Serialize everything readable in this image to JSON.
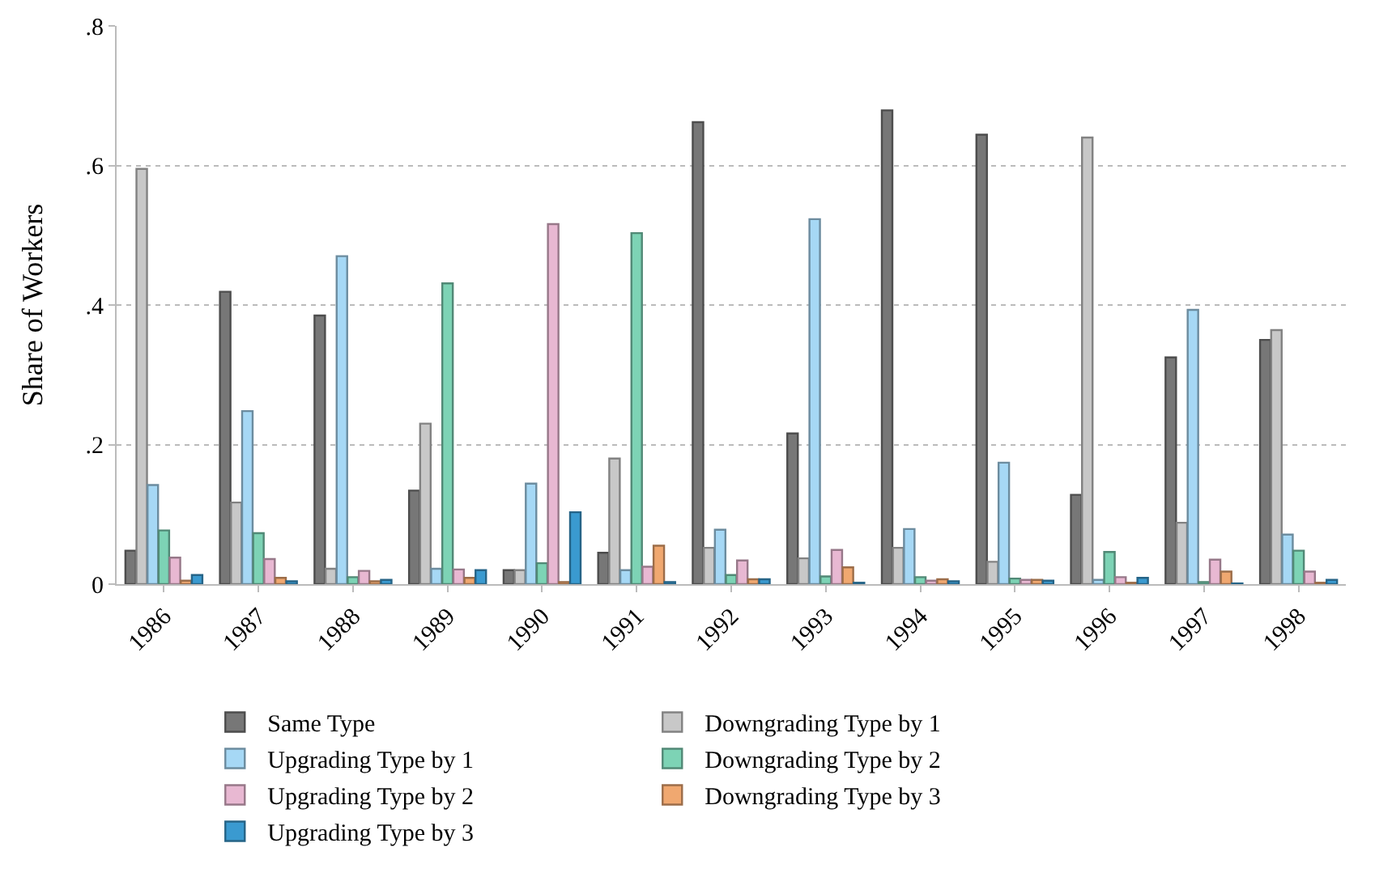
{
  "chart_data": {
    "type": "bar",
    "ylabel": "Share of Workers",
    "categories": [
      "1986",
      "1987",
      "1988",
      "1989",
      "1990",
      "1991",
      "1992",
      "1993",
      "1994",
      "1995",
      "1996",
      "1997",
      "1998"
    ],
    "series": [
      {
        "name": "Same Type",
        "color": "#777777",
        "values": [
          0.048,
          0.419,
          0.385,
          0.134,
          0.02,
          0.045,
          0.662,
          0.216,
          0.679,
          0.644,
          0.128,
          0.325,
          0.35
        ]
      },
      {
        "name": "Downgrading Type by 1",
        "color": "#c8c8c8",
        "values": [
          0.595,
          0.117,
          0.022,
          0.23,
          0.02,
          0.18,
          0.052,
          0.037,
          0.052,
          0.032,
          0.64,
          0.088,
          0.364
        ]
      },
      {
        "name": "Upgrading Type by 1",
        "color": "#a6d8f5",
        "values": [
          0.142,
          0.248,
          0.47,
          0.022,
          0.144,
          0.02,
          0.078,
          0.523,
          0.079,
          0.174,
          0.006,
          0.393,
          0.071
        ]
      },
      {
        "name": "Downgrading Type by 2",
        "color": "#7dd3b5",
        "values": [
          0.077,
          0.073,
          0.01,
          0.431,
          0.03,
          0.503,
          0.013,
          0.011,
          0.01,
          0.008,
          0.046,
          0.003,
          0.048
        ]
      },
      {
        "name": "Upgrading Type by 2",
        "color": "#e8b8d2",
        "values": [
          0.038,
          0.036,
          0.019,
          0.021,
          0.516,
          0.025,
          0.034,
          0.049,
          0.005,
          0.006,
          0.01,
          0.035,
          0.018
        ]
      },
      {
        "name": "Downgrading Type by 3",
        "color": "#f0a870",
        "values": [
          0.005,
          0.009,
          0.004,
          0.009,
          0.003,
          0.055,
          0.007,
          0.024,
          0.007,
          0.006,
          0.002,
          0.018,
          0.002
        ]
      },
      {
        "name": "Upgrading Type by 3",
        "color": "#3a9ad0",
        "values": [
          0.013,
          0.004,
          0.006,
          0.02,
          0.103,
          0.003,
          0.007,
          0.002,
          0.004,
          0.005,
          0.009,
          0.001,
          0.006
        ]
      }
    ],
    "ylim": [
      0,
      0.8
    ],
    "yticks": [
      {
        "value": 0,
        "label": "0"
      },
      {
        "value": 0.2,
        "label": ".2"
      },
      {
        "value": 0.4,
        "label": ".4"
      },
      {
        "value": 0.6,
        "label": ".6"
      },
      {
        "value": 0.8,
        "label": ".8"
      }
    ],
    "grid": "y",
    "legend": "bottom"
  }
}
